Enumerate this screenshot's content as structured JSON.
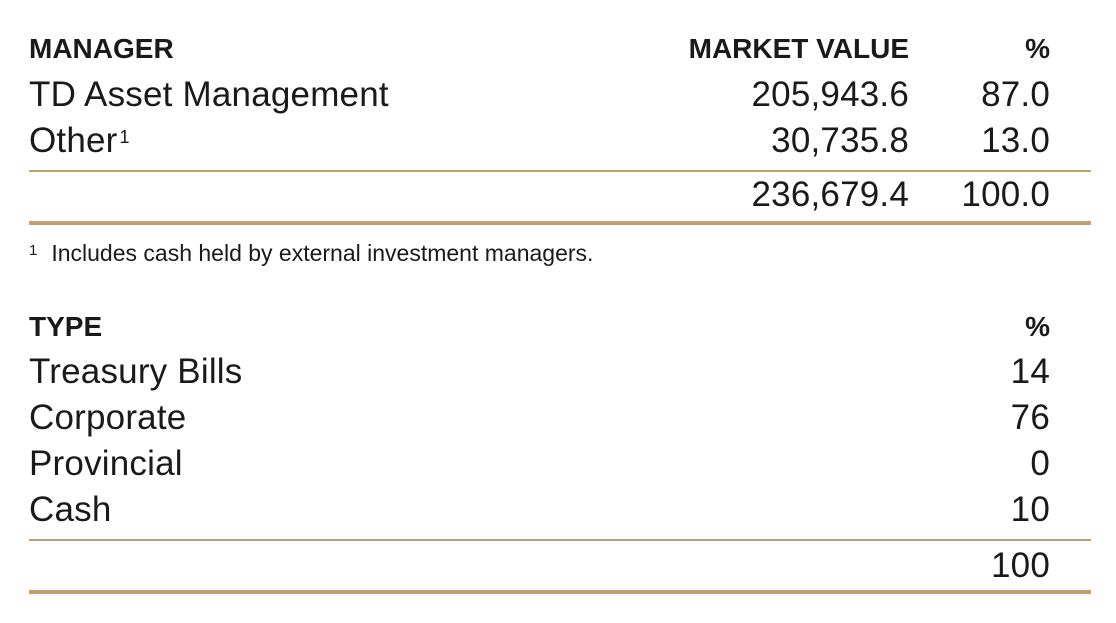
{
  "manager_table": {
    "headers": {
      "name": "MANAGER",
      "market_value": "MARKET VALUE",
      "percent": "%"
    },
    "rows": [
      {
        "name": "TD Asset Management",
        "market_value": "205,943.6",
        "percent": "87.0"
      },
      {
        "name": "Other",
        "footnote_ref": "1",
        "market_value": "30,735.8",
        "percent": "13.0"
      }
    ],
    "total": {
      "market_value": "236,679.4",
      "percent": "100.0"
    }
  },
  "footnote": {
    "marker": "1",
    "text": "Includes cash held by external investment managers."
  },
  "type_table": {
    "headers": {
      "name": "TYPE",
      "percent": "%"
    },
    "rows": [
      {
        "name": "Treasury Bills",
        "percent": "14"
      },
      {
        "name": "Corporate",
        "percent": "76"
      },
      {
        "name": "Provincial",
        "percent": "0"
      },
      {
        "name": "Cash",
        "percent": "10"
      }
    ],
    "total": {
      "percent": "100"
    }
  },
  "colors": {
    "rule": "#c2a071",
    "text": "#1a1a1a"
  }
}
